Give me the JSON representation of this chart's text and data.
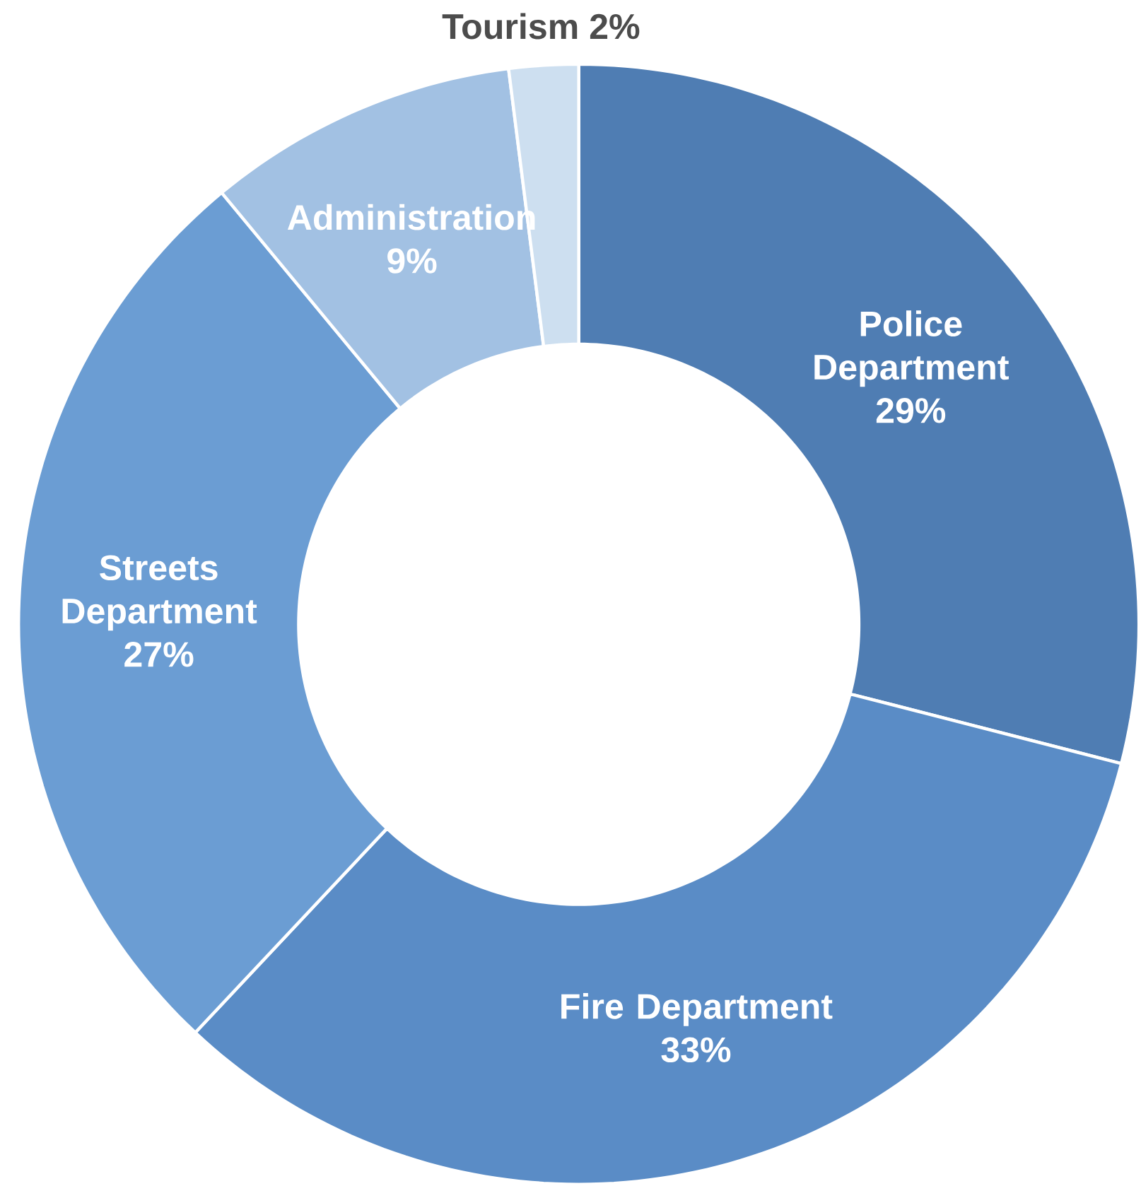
{
  "chart_data": {
    "type": "donut",
    "categories": [
      "Police Department",
      "Fire Department",
      "Streets Department",
      "Administration",
      "Tourism"
    ],
    "values": [
      29,
      33,
      27,
      9,
      2
    ],
    "value_labels": [
      "29%",
      "33%",
      "27%",
      "9%",
      "2%"
    ],
    "colors": [
      "#4f7db3",
      "#5a8cc6",
      "#6b9dd3",
      "#a2c1e3",
      "#cddff0"
    ]
  }
}
